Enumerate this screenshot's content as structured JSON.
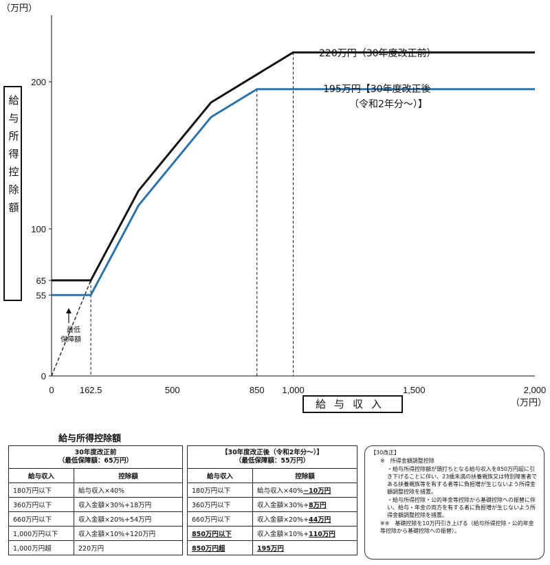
{
  "chart_data": {
    "type": "line",
    "y_unit": "（万円）",
    "x_unit": "（万円）",
    "ylabel": "給与所得控除額",
    "xlabel": "給与収入",
    "xlim": [
      0,
      2000
    ],
    "ylim": [
      0,
      245
    ],
    "x_ticks": [
      {
        "value": 0,
        "label": "0"
      },
      {
        "value": 162.5,
        "label": "162.5"
      },
      {
        "value": 500,
        "label": "500"
      },
      {
        "value": 850,
        "label": "850"
      },
      {
        "value": 1000,
        "label": "1,000"
      },
      {
        "value": 1500,
        "label": "1,500"
      },
      {
        "value": 2000,
        "label": "2,000"
      }
    ],
    "y_ticks": [
      {
        "value": 0,
        "label": "0"
      },
      {
        "value": 55,
        "label": "55"
      },
      {
        "value": 65,
        "label": "65"
      },
      {
        "value": 100,
        "label": "100"
      },
      {
        "value": 200,
        "label": "200"
      }
    ],
    "series": [
      {
        "name": "220万円（30年度改正前）",
        "color": "#111111",
        "x": [
          0,
          162.5,
          360,
          660,
          1000,
          2000
        ],
        "y": [
          65,
          65,
          126,
          186,
          220,
          220
        ]
      },
      {
        "name": "195万円【30年度改正後（令和2年分～）】",
        "color": "#2a72a8",
        "x": [
          0,
          162.5,
          360,
          660,
          850,
          2000
        ],
        "y": [
          55,
          55,
          116,
          176,
          195,
          195
        ]
      }
    ],
    "labels": {
      "before": "220万円（30年度改正前）",
      "after_line1": "195万円【30年度改正後",
      "after_line2": "（令和2年分～）】",
      "min_guarantee_1": "最低",
      "min_guarantee_2": "保障額"
    },
    "grid": false
  },
  "tables": {
    "title": "給与所得控除額",
    "before": {
      "heading_line1": "30年度改正前",
      "heading_line2": "（最低保障額：65万円）",
      "col_income": "給与収入",
      "col_deduction": "控除額",
      "rows": [
        {
          "income": "180万円以下",
          "deduction": "給与収入×40%"
        },
        {
          "income": "360万円以下",
          "deduction": "収入金額×30%+18万円"
        },
        {
          "income": "660万円以下",
          "deduction": "収入金額×20%+54万円"
        },
        {
          "income": "1,000万円以下",
          "deduction": "収入金額×10%+120万円"
        },
        {
          "income": "1,000万円超",
          "deduction": "220万円"
        }
      ]
    },
    "after": {
      "heading_line1": "【30年度改正後（令和2年分～）】",
      "heading_line2": "（最低保障額：55万円）",
      "col_income": "給与収入",
      "col_deduction": "控除額",
      "rows": [
        {
          "income": "180万円以下",
          "deduction_base": "給与収入×40%",
          "deduction_change": "−10万円"
        },
        {
          "income": "360万円以下",
          "deduction_base": "収入金額×30%+",
          "deduction_change": "8万円"
        },
        {
          "income": "660万円以下",
          "deduction_base": "収入金額×20%+",
          "deduction_change": "44万円"
        },
        {
          "income": "850万円以下",
          "deduction_base": "収入金額×10%+",
          "deduction_change": "110万円"
        },
        {
          "income": "850万円超",
          "deduction_base": "",
          "deduction_change": "195万円"
        }
      ]
    }
  },
  "notes": {
    "title": "【30改正】",
    "item1_head": "※　所得金額調整控除",
    "item1_text1": "・給与所得控除額が頭打ちとなる給与収入を850万円超に引き下げることに伴い、23歳未満の扶養親族又は特別障害者である扶養親族等を有する者等に負担増が生じないよう所得金額調整控除を措置。",
    "item1_text2": "・給与所得控除・公的年金等控除から基礎控除への振替に伴い、給与・年金の両方を有する者に負担増が生じないよう所得金額調整控除を措置。",
    "item2": "※※　基礎控除を10万円引き上げる（給与所得控除・公的年金等控除から基礎控除への振替）。"
  }
}
